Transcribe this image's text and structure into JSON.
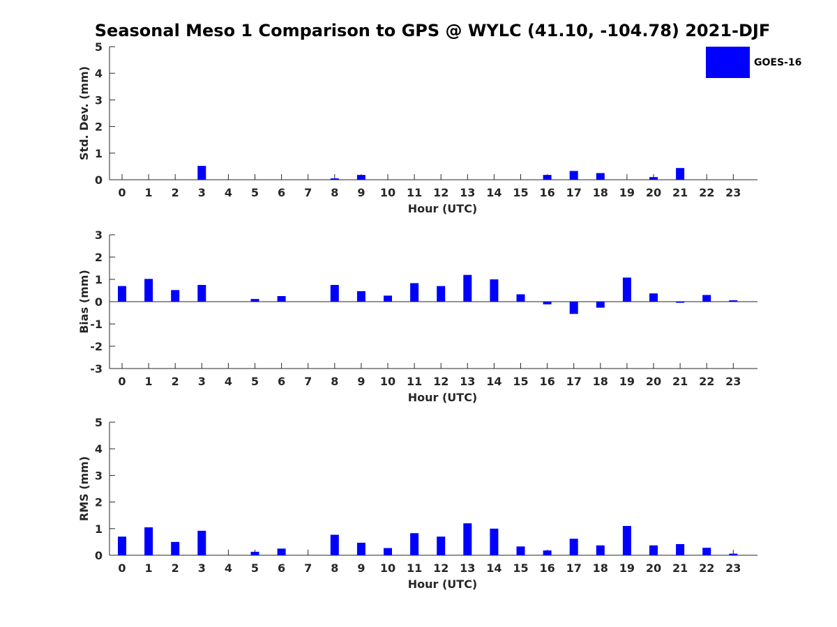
{
  "title": "Seasonal Meso 1 Comparison to GPS @ WYLC (41.10, -104.78) 2021-DJF",
  "legend": {
    "label": "GOES-16",
    "color": "#0000ff"
  },
  "chart_data": [
    {
      "type": "bar",
      "xlabel": "Hour (UTC)",
      "ylabel": "Std. Dev. (mm)",
      "ylim": [
        0,
        5
      ],
      "yticks": [
        0,
        1,
        2,
        3,
        4,
        5
      ],
      "categories": [
        "0",
        "1",
        "2",
        "3",
        "4",
        "5",
        "6",
        "7",
        "8",
        "9",
        "10",
        "11",
        "12",
        "13",
        "14",
        "15",
        "16",
        "17",
        "18",
        "19",
        "20",
        "21",
        "22",
        "23"
      ],
      "series": [
        {
          "name": "GOES-16",
          "values": [
            0,
            0,
            0,
            0.52,
            0,
            0,
            0,
            0,
            0.05,
            0.18,
            0,
            0,
            0,
            0,
            0,
            0,
            0.18,
            0.33,
            0.25,
            0,
            0.1,
            0.44,
            0,
            0
          ]
        }
      ]
    },
    {
      "type": "bar",
      "xlabel": "Hour (UTC)",
      "ylabel": "Bias (mm)",
      "ylim": [
        -3,
        3
      ],
      "yticks": [
        -3,
        -2,
        -1,
        0,
        1,
        2,
        3
      ],
      "categories": [
        "0",
        "1",
        "2",
        "3",
        "4",
        "5",
        "6",
        "7",
        "8",
        "9",
        "10",
        "11",
        "12",
        "13",
        "14",
        "15",
        "16",
        "17",
        "18",
        "19",
        "20",
        "21",
        "22",
        "23"
      ],
      "series": [
        {
          "name": "GOES-16",
          "values": [
            0.7,
            1.02,
            0.52,
            0.75,
            0,
            0.12,
            0.25,
            0,
            0.75,
            0.47,
            0.27,
            0.83,
            0.7,
            1.2,
            1.0,
            0.33,
            -0.12,
            -0.55,
            -0.27,
            1.08,
            0.37,
            -0.05,
            0.3,
            0.06
          ]
        }
      ]
    },
    {
      "type": "bar",
      "xlabel": "Hour (UTC)",
      "ylabel": "RMS (mm)",
      "ylim": [
        0,
        5
      ],
      "yticks": [
        0,
        1,
        2,
        3,
        4,
        5
      ],
      "categories": [
        "0",
        "1",
        "2",
        "3",
        "4",
        "5",
        "6",
        "7",
        "8",
        "9",
        "10",
        "11",
        "12",
        "13",
        "14",
        "15",
        "16",
        "17",
        "18",
        "19",
        "20",
        "21",
        "22",
        "23"
      ],
      "series": [
        {
          "name": "GOES-16",
          "values": [
            0.7,
            1.05,
            0.5,
            0.92,
            0,
            0.13,
            0.25,
            0,
            0.77,
            0.47,
            0.27,
            0.83,
            0.7,
            1.2,
            1.0,
            0.33,
            0.18,
            0.62,
            0.37,
            1.1,
            0.37,
            0.42,
            0.28,
            0.06
          ]
        }
      ]
    }
  ]
}
